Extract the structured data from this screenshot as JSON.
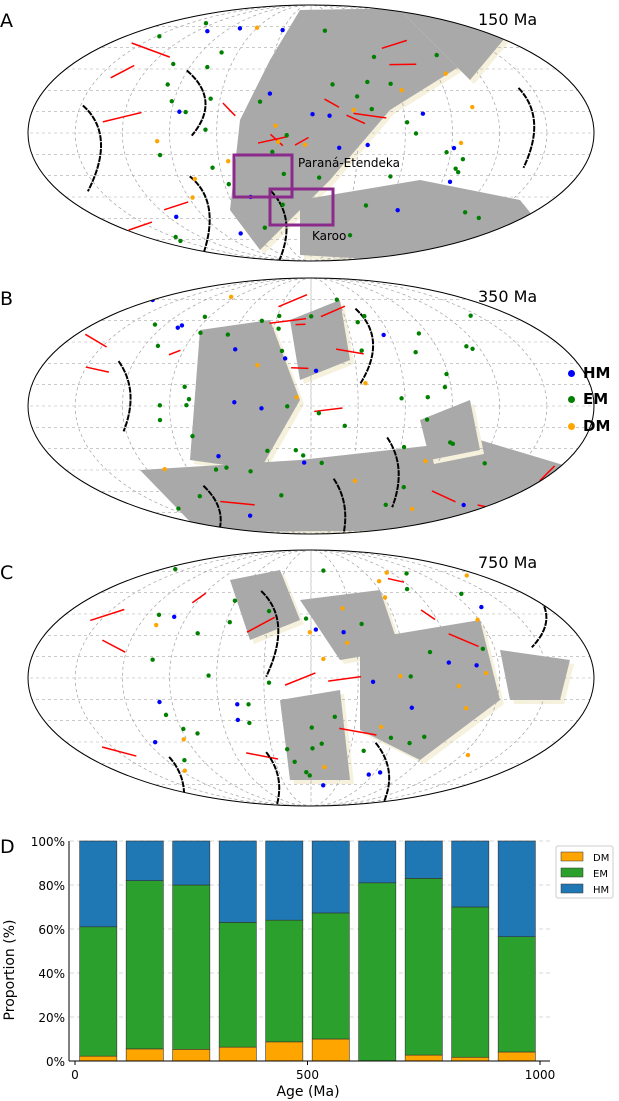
{
  "panels": {
    "a": {
      "letter": "A",
      "age": "150 Ma",
      "boxes": [
        "Paraná-Etendeka",
        "Karoo"
      ]
    },
    "b": {
      "letter": "B",
      "age": "350 Ma"
    },
    "c": {
      "letter": "C",
      "age": "750 Ma"
    },
    "d": {
      "letter": "D"
    }
  },
  "map_legend": [
    {
      "label": "HM",
      "color": "#0000ff"
    },
    {
      "label": "EM",
      "color": "#008000"
    },
    {
      "label": "DM",
      "color": "#ffa500"
    }
  ],
  "colors": {
    "land": "#a9a9a9",
    "shelf": "#f5f1dc",
    "ridge": "#ff0000",
    "subduction": "#000000",
    "box": "#8b2a8b",
    "highlight": "#7fdbe8"
  },
  "chart_data": {
    "type": "bar",
    "stacked": true,
    "x": [
      50,
      150,
      250,
      350,
      450,
      550,
      650,
      750,
      850,
      950
    ],
    "bar_width": 80,
    "xlabel": "Age (Ma)",
    "ylabel": "Proportion (%)",
    "xlim": [
      0,
      1000
    ],
    "ylim": [
      0,
      100
    ],
    "xticks": [
      "0",
      "500",
      "1000"
    ],
    "yticks": [
      "0%",
      "20%",
      "40%",
      "60%",
      "80%",
      "100%"
    ],
    "grid": true,
    "legend": "top-right",
    "series": [
      {
        "name": "DM",
        "color": "#ffa500",
        "values": [
          2.2,
          5.5,
          5.3,
          6.3,
          8.7,
          10.0,
          0.0,
          2.7,
          1.7,
          4.1
        ]
      },
      {
        "name": "EM",
        "color": "#2ca02c",
        "values": [
          58.8,
          76.5,
          74.7,
          56.7,
          55.3,
          57.3,
          81.0,
          80.3,
          68.3,
          52.4
        ]
      },
      {
        "name": "HM",
        "color": "#1f77b4",
        "values": [
          39.0,
          18.0,
          20.0,
          37.0,
          36.0,
          32.7,
          19.0,
          17.0,
          30.0,
          43.5
        ]
      }
    ]
  }
}
